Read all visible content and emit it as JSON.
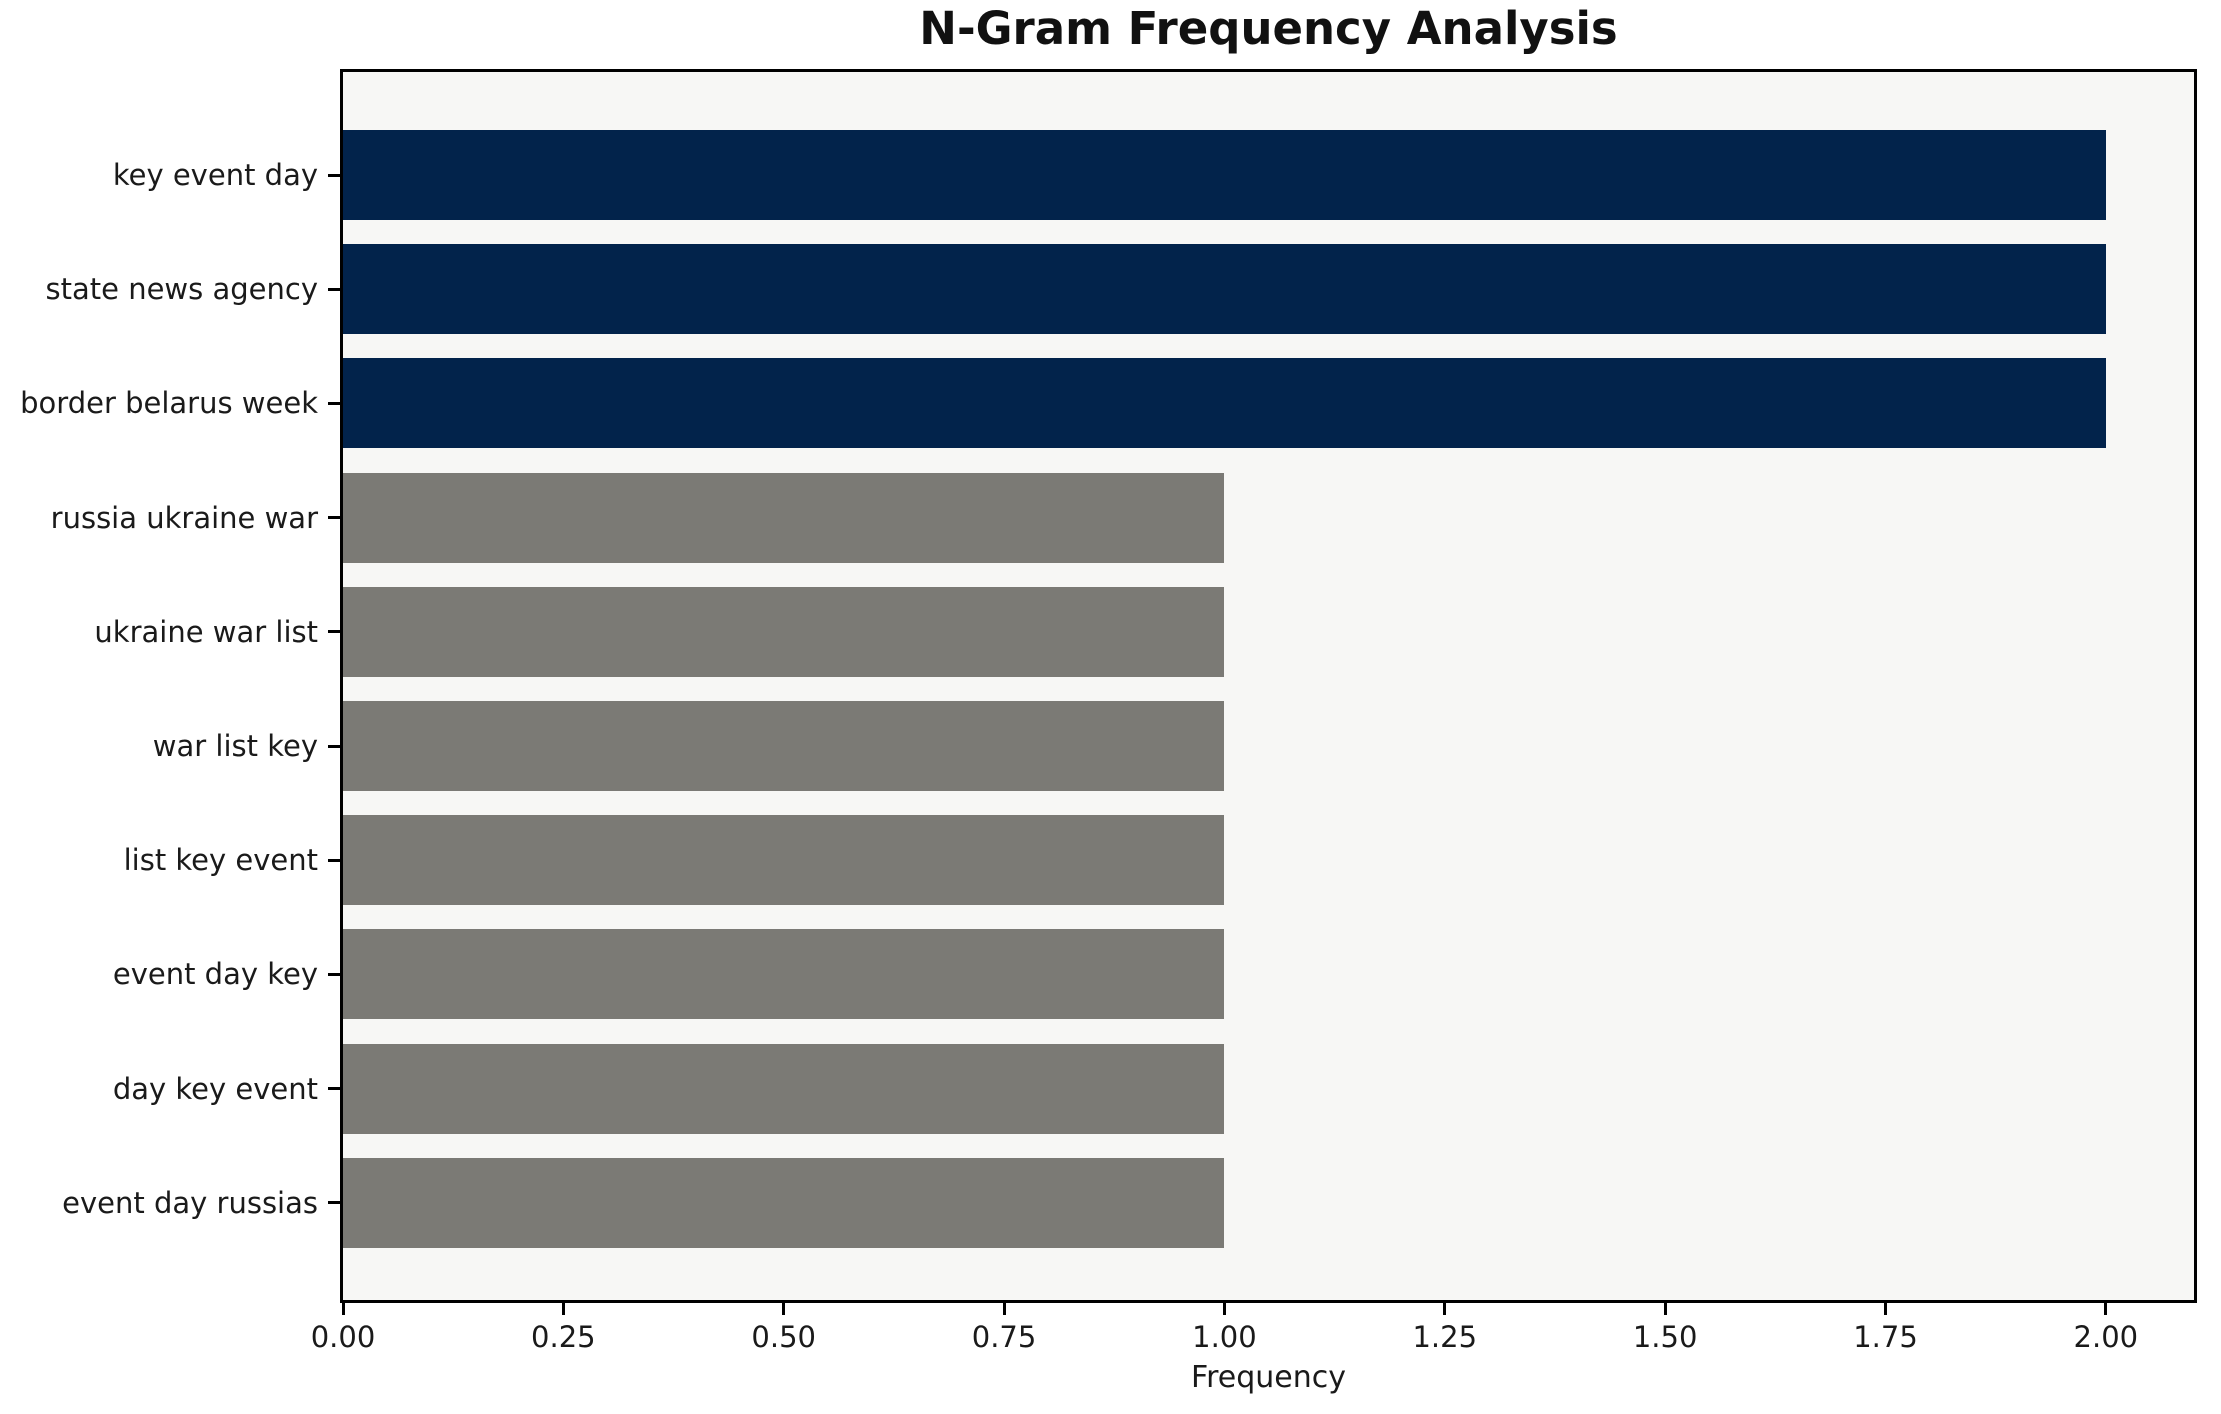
{
  "chart_data": {
    "type": "bar",
    "orientation": "horizontal",
    "title": "N-Gram Frequency Analysis",
    "xlabel": "Frequency",
    "ylabel": "",
    "categories": [
      "key event day",
      "state news agency",
      "border belarus week",
      "russia ukraine war",
      "ukraine war list",
      "war list key",
      "list key event",
      "event day key",
      "day key event",
      "event day russias"
    ],
    "values": [
      2,
      2,
      2,
      1,
      1,
      1,
      1,
      1,
      1,
      1
    ],
    "bar_colors": [
      "#02234B",
      "#02234B",
      "#02234B",
      "#7B7A75",
      "#7B7A75",
      "#7B7A75",
      "#7B7A75",
      "#7B7A75",
      "#7B7A75",
      "#7B7A75"
    ],
    "xlim": [
      0,
      2.1
    ],
    "xtick_values": [
      0,
      0.25,
      0.5,
      0.75,
      1.0,
      1.25,
      1.5,
      1.75,
      2.0
    ],
    "xtick_labels": [
      "0.00",
      "0.25",
      "0.50",
      "0.75",
      "1.00",
      "1.25",
      "1.50",
      "1.75",
      "2.00"
    ],
    "grid": false,
    "legend": null,
    "colors": {
      "highlight_bar": "#02234B",
      "default_bar": "#7B7A75",
      "plot_background": "#F7F7F5",
      "figure_background": "#FFFFFF",
      "spine": "#000000",
      "text": "#1A1A1A"
    }
  }
}
